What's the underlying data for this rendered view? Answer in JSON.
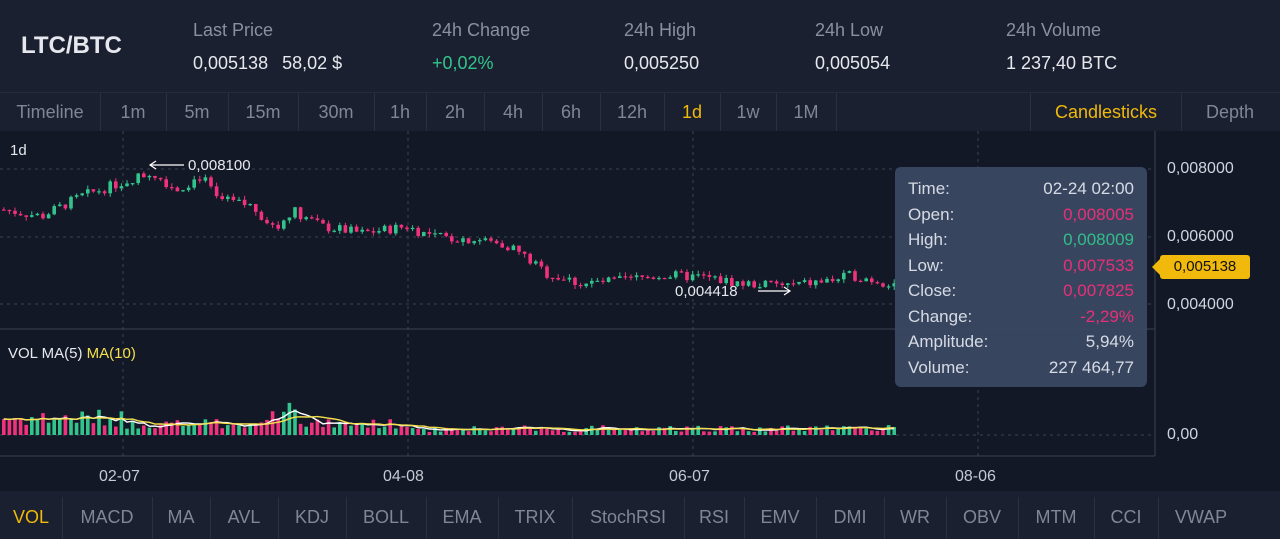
{
  "header": {
    "pair": "LTC/BTC",
    "last_price_label": "Last Price",
    "last_price": "0,005138",
    "last_price_usd": "58,02 $",
    "change_label": "24h Change",
    "change": "+0,02%",
    "high_label": "24h High",
    "high": "0,005250",
    "low_label": "24h Low",
    "low": "0,005054",
    "volume_label": "24h Volume",
    "volume": "1 237,40 BTC"
  },
  "timeframes": [
    "Timeline",
    "1m",
    "5m",
    "15m",
    "30m",
    "1h",
    "2h",
    "4h",
    "6h",
    "12h",
    "1d",
    "1w",
    "1M"
  ],
  "active_timeframe": "1d",
  "chart_modes": [
    "Candlesticks",
    "Depth"
  ],
  "active_mode": "Candlesticks",
  "chart": {
    "interval_label": "1d",
    "max_label": "0,008100",
    "min_label": "0,004418",
    "price_axis": [
      "0,008000",
      "0,006000",
      "0,004000"
    ],
    "current_price_tag": "0,005138",
    "vol_label": "VOL MA(5)",
    "vol_ma10_label": "MA(10)",
    "vol_axis": "0,00",
    "date_axis": [
      "02-07",
      "04-08",
      "06-07",
      "08-06"
    ]
  },
  "tooltip": {
    "time_label": "Time:",
    "time": "02-24 02:00",
    "open_label": "Open:",
    "open": "0,008005",
    "high_label": "High:",
    "high": "0,008009",
    "low_label": "Low:",
    "low": "0,007533",
    "close_label": "Close:",
    "close": "0,007825",
    "change_label": "Change:",
    "change": "-2,29%",
    "amplitude_label": "Amplitude:",
    "amplitude": "5,94%",
    "volume_label": "Volume:",
    "volume": "227 464,77"
  },
  "indicators": [
    "VOL",
    "MACD",
    "MA",
    "AVL",
    "KDJ",
    "BOLL",
    "EMA",
    "TRIX",
    "StochRSI",
    "RSI",
    "EMV",
    "DMI",
    "WR",
    "OBV",
    "MTM",
    "CCI",
    "VWAP"
  ],
  "active_indicator": "VOL",
  "colors": {
    "accent": "#f0b90b",
    "up": "#33c48c",
    "down": "#f0317b",
    "background": "#131826"
  }
}
